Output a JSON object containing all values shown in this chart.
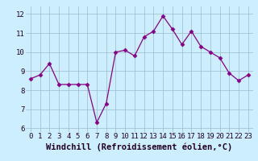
{
  "x": [
    0,
    1,
    2,
    3,
    4,
    5,
    6,
    7,
    8,
    9,
    10,
    11,
    12,
    13,
    14,
    15,
    16,
    17,
    18,
    19,
    20,
    21,
    22,
    23
  ],
  "y": [
    8.6,
    8.8,
    9.4,
    8.3,
    8.3,
    8.3,
    8.3,
    6.3,
    7.3,
    10.0,
    10.1,
    9.8,
    10.8,
    11.1,
    11.9,
    11.2,
    10.4,
    11.1,
    10.3,
    10.0,
    9.7,
    8.9,
    8.5,
    8.8
  ],
  "line_color": "#880088",
  "marker": "D",
  "marker_size": 2.5,
  "background_color": "#cceeff",
  "grid_color": "#99bbcc",
  "xlabel": "Windchill (Refroidissement éolien,°C)",
  "xlabel_color": "#220022",
  "xlabel_fontsize": 7.5,
  "tick_color": "#220022",
  "tick_fontsize": 6.5,
  "xlim": [
    -0.5,
    23.5
  ],
  "ylim": [
    5.8,
    12.4
  ],
  "yticks": [
    6,
    7,
    8,
    9,
    10,
    11,
    12
  ],
  "xticks": [
    0,
    1,
    2,
    3,
    4,
    5,
    6,
    7,
    8,
    9,
    10,
    11,
    12,
    13,
    14,
    15,
    16,
    17,
    18,
    19,
    20,
    21,
    22,
    23
  ]
}
